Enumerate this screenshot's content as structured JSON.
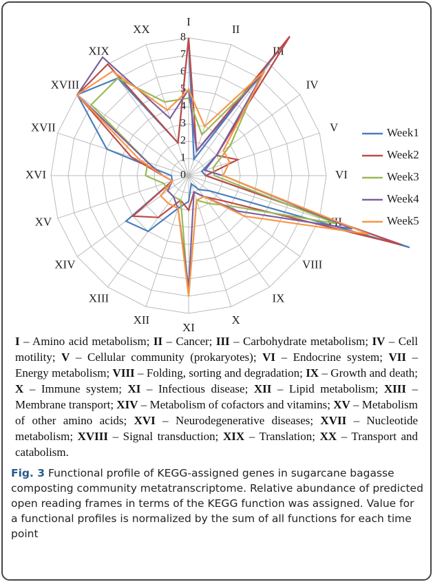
{
  "chart_data": {
    "type": "radar",
    "categories": [
      "I",
      "II",
      "III",
      "IV",
      "V",
      "VI",
      "VII",
      "VIII",
      "IX",
      "X",
      "XI",
      "XII",
      "XIII",
      "XIV",
      "XV",
      "XVI",
      "XVII",
      "XVIII",
      "XIX",
      "XX"
    ],
    "rlim": [
      0,
      8
    ],
    "rticks": [
      0,
      1,
      2,
      3,
      4,
      5,
      6,
      7,
      8
    ],
    "grid": true,
    "legend": "right",
    "series": [
      {
        "name": "Week1",
        "color": "#4a7ebb",
        "values": [
          8,
          1,
          10,
          2,
          0.8,
          1,
          13.5,
          1.5,
          1,
          0.5,
          1.5,
          2,
          4,
          4.5,
          1,
          1,
          5,
          8,
          7,
          2
        ]
      },
      {
        "name": "Week2",
        "color": "#be4b48",
        "values": [
          8,
          1.5,
          10,
          2,
          3,
          1,
          13,
          2.5,
          1.5,
          1,
          2,
          1.5,
          3,
          4,
          1,
          1.5,
          3.5,
          8,
          8,
          2
        ]
      },
      {
        "name": "Week3",
        "color": "#98b954",
        "values": [
          4.5,
          2.5,
          7,
          3,
          1.5,
          1.5,
          9,
          3,
          2,
          1.5,
          7,
          1.5,
          1.5,
          1.5,
          1.5,
          2.5,
          2.5,
          7,
          7,
          4.5
        ]
      },
      {
        "name": "Week4",
        "color": "#7d60a0",
        "values": [
          5,
          1.5,
          7.5,
          2,
          1,
          2,
          10,
          3.5,
          1.5,
          1,
          6.5,
          2,
          1.5,
          1.5,
          1,
          1.5,
          2.5,
          8,
          8.5,
          3.5
        ]
      },
      {
        "name": "Week5",
        "color": "#f79646",
        "values": [
          5,
          3,
          7.5,
          2.5,
          2.5,
          2,
          11,
          4,
          1.5,
          1.5,
          7,
          2,
          2,
          2,
          1,
          1.5,
          3,
          8,
          7.5,
          4
        ]
      }
    ]
  },
  "key": [
    {
      "code": "I",
      "text": "– Amino acid metabolism;"
    },
    {
      "code": "II",
      "text": "– Cancer;"
    },
    {
      "code": "III",
      "text": "– Carbohydrate metabolism;"
    },
    {
      "code": "IV",
      "text": "– Cell motility;"
    },
    {
      "code": "V",
      "text": "– Cellular community (prokaryotes);"
    },
    {
      "code": "VI",
      "text": "– Endocrine system;"
    },
    {
      "code": "VII",
      "text": "– Energy metabolism;"
    },
    {
      "code": "VIII",
      "text": "– Folding, sorting and degradation;"
    },
    {
      "code": "IX",
      "text": "– Growth and death;"
    },
    {
      "code": "X",
      "text": "– Immune system;"
    },
    {
      "code": "XI",
      "text": "– Infectious disease;"
    },
    {
      "code": "XII",
      "text": "– Lipid metabolism;"
    },
    {
      "code": "XIII",
      "text": "– Membrane transport;"
    },
    {
      "code": "XIV",
      "text": "– Metabolism of cofactors and vitamins;"
    },
    {
      "code": "XV",
      "text": "– Metabolism of other amino acids;"
    },
    {
      "code": "XVI",
      "text": "– Neurodegenerative diseases;"
    },
    {
      "code": "XVII",
      "text": "– Nucleotide metabolism;"
    },
    {
      "code": "XVIII",
      "text": "– Signal transduction;"
    },
    {
      "code": "XIX",
      "text": "– Translation;"
    },
    {
      "code": "XX",
      "text": "– Transport and catabolism."
    }
  ],
  "caption": {
    "label": "Fig. 3",
    "text": "Functional profile of KEGG-assigned genes in sugarcane bagasse composting community metatranscriptome. Relative abundance of predicted open reading frames in terms of the KEGG function was assigned. Value for a functional profiles is normalized by the sum of all functions for each time point"
  }
}
